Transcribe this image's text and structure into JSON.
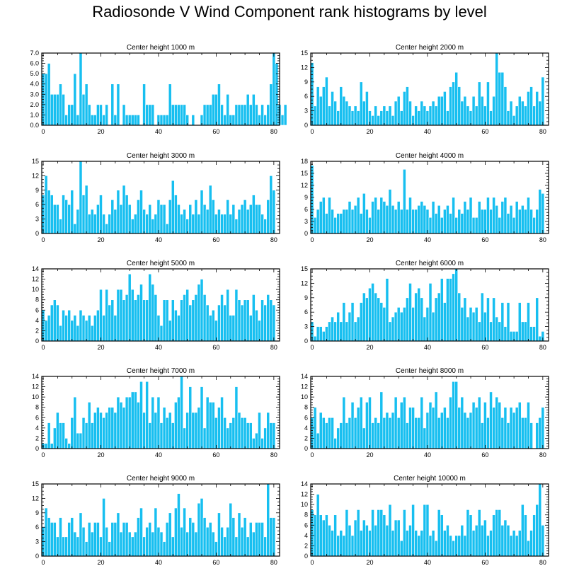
{
  "title": "Radiosonde V Wind Component rank histograms by level",
  "colors": {
    "bar": "#17bff0",
    "bar_edge": "#ffffff",
    "axis": "#000000"
  },
  "chart_data": [
    {
      "type": "bar",
      "title": "Center height 1000 m",
      "x_start": 0,
      "xlim": [
        -0.5,
        82
      ],
      "xticks": [
        0,
        20,
        40,
        60,
        80
      ],
      "ylim": [
        0,
        7
      ],
      "yticks": [
        0,
        1,
        2,
        3,
        4,
        5,
        6,
        7
      ],
      "ytick_labels": [
        "0.0",
        "1.0",
        "2.0",
        "3.0",
        "4.0",
        "5.0",
        "6.0",
        "7.0"
      ],
      "values": [
        5,
        5,
        6,
        3,
        3,
        3,
        4,
        3,
        1,
        2,
        2,
        5,
        1,
        7,
        3,
        4,
        2,
        1,
        1,
        2,
        2,
        1,
        2,
        0,
        4,
        1,
        4,
        0,
        2,
        1,
        1,
        1,
        1,
        1,
        0,
        4,
        2,
        2,
        2,
        0,
        1,
        1,
        1,
        1,
        4,
        2,
        2,
        2,
        2,
        2,
        1,
        0,
        1,
        0,
        0,
        1,
        2,
        2,
        2,
        3,
        3,
        4,
        2,
        1,
        3,
        1,
        1,
        2,
        2,
        2,
        2,
        3,
        2,
        3,
        2,
        1,
        2,
        1,
        2,
        4,
        7,
        6,
        2,
        1,
        2
      ]
    },
    {
      "type": "bar",
      "title": "Center height 2000 m",
      "x_start": 0,
      "xlim": [
        -0.5,
        82
      ],
      "xticks": [
        0,
        20,
        40,
        60,
        80
      ],
      "ylim": [
        0,
        15
      ],
      "yticks": [
        0,
        3,
        6,
        9,
        12,
        15
      ],
      "ytick_labels": [
        "0",
        "3",
        "6",
        "9",
        "12",
        "15"
      ],
      "values": [
        13,
        4,
        8,
        6,
        8,
        10,
        4,
        7,
        5,
        3,
        8,
        6,
        5,
        4,
        3,
        4,
        3,
        9,
        5,
        7,
        3,
        2,
        4,
        2,
        3,
        4,
        3,
        4,
        2,
        5,
        6,
        3,
        7,
        8,
        5,
        2,
        4,
        3,
        5,
        4,
        3,
        4,
        5,
        4,
        6,
        6,
        7,
        3,
        8,
        9,
        11,
        8,
        5,
        6,
        4,
        3,
        6,
        4,
        9,
        6,
        4,
        9,
        3,
        6,
        15,
        11,
        11,
        8,
        3,
        5,
        2,
        4,
        6,
        5,
        4,
        7,
        8,
        4,
        7,
        5,
        10
      ]
    },
    {
      "type": "bar",
      "title": "Center height 3000 m",
      "x_start": 0,
      "xlim": [
        -0.5,
        82
      ],
      "xticks": [
        0,
        20,
        40,
        60,
        80
      ],
      "ylim": [
        0,
        15
      ],
      "yticks": [
        0,
        3,
        6,
        9,
        12,
        15
      ],
      "ytick_labels": [
        "0",
        "3",
        "6",
        "9",
        "12",
        "15"
      ],
      "values": [
        8,
        12,
        9,
        8,
        6,
        6,
        3,
        8,
        7,
        6,
        9,
        2,
        5,
        15,
        8,
        10,
        4,
        5,
        4,
        6,
        8,
        4,
        2,
        4,
        7,
        5,
        9,
        6,
        10,
        8,
        6,
        3,
        4,
        7,
        9,
        5,
        4,
        6,
        3,
        4,
        7,
        6,
        6,
        2,
        7,
        11,
        8,
        6,
        4,
        5,
        3,
        6,
        4,
        7,
        4,
        9,
        6,
        5,
        10,
        7,
        4,
        5,
        4,
        4,
        7,
        4,
        6,
        3,
        5,
        6,
        7,
        5,
        6,
        8,
        6,
        6,
        4,
        3,
        7,
        12,
        9
      ]
    },
    {
      "type": "bar",
      "title": "Center height 4000 m",
      "x_start": 0,
      "xlim": [
        -0.5,
        82
      ],
      "xticks": [
        0,
        20,
        40,
        60,
        80
      ],
      "ylim": [
        0,
        18
      ],
      "yticks": [
        0,
        3,
        6,
        9,
        12,
        15,
        18
      ],
      "ytick_labels": [
        "0",
        "3",
        "6",
        "9",
        "12",
        "15",
        "18"
      ],
      "values": [
        17,
        4,
        6,
        8,
        9,
        5,
        9,
        6,
        4,
        5,
        5,
        6,
        6,
        8,
        6,
        7,
        9,
        5,
        10,
        6,
        4,
        8,
        9,
        6,
        9,
        8,
        7,
        11,
        7,
        6,
        8,
        6,
        16,
        6,
        9,
        6,
        6,
        7,
        8,
        7,
        6,
        4,
        8,
        5,
        7,
        4,
        6,
        7,
        5,
        9,
        4,
        6,
        5,
        8,
        6,
        9,
        4,
        4,
        8,
        6,
        6,
        9,
        6,
        9,
        7,
        4,
        8,
        9,
        5,
        7,
        4,
        8,
        6,
        7,
        6,
        9,
        6,
        4,
        6,
        11,
        10
      ]
    },
    {
      "type": "bar",
      "title": "Center height 5000 m",
      "x_start": 0,
      "xlim": [
        -0.5,
        82
      ],
      "xticks": [
        0,
        20,
        40,
        60,
        80
      ],
      "ylim": [
        0,
        14
      ],
      "yticks": [
        0,
        2,
        4,
        6,
        8,
        10,
        12,
        14
      ],
      "ytick_labels": [
        "0",
        "2",
        "4",
        "6",
        "8",
        "10",
        "12",
        "14"
      ],
      "values": [
        6,
        4,
        5,
        7,
        8,
        7,
        3,
        6,
        5,
        6,
        4,
        5,
        3,
        6,
        5,
        4,
        5,
        3,
        5,
        6,
        10,
        5,
        10,
        7,
        8,
        5,
        10,
        10,
        8,
        9,
        13,
        10,
        8,
        9,
        11,
        8,
        8,
        13,
        11,
        9,
        5,
        3,
        8,
        8,
        4,
        8,
        6,
        5,
        8,
        9,
        10,
        7,
        8,
        9,
        11,
        12,
        9,
        7,
        5,
        6,
        4,
        7,
        9,
        7,
        10,
        5,
        5,
        10,
        8,
        7,
        8,
        8,
        5,
        9,
        6,
        4,
        8,
        7,
        9,
        8,
        7
      ]
    },
    {
      "type": "bar",
      "title": "Center height 6000 m",
      "x_start": 0,
      "xlim": [
        -0.5,
        82
      ],
      "xticks": [
        0,
        20,
        40,
        60,
        80
      ],
      "ylim": [
        0,
        15
      ],
      "yticks": [
        0,
        3,
        6,
        9,
        12,
        15
      ],
      "ytick_labels": [
        "0",
        "3",
        "6",
        "9",
        "12",
        "15"
      ],
      "values": [
        4,
        1,
        3,
        3,
        2,
        3,
        4,
        5,
        4,
        6,
        4,
        8,
        4,
        6,
        8,
        4,
        5,
        8,
        10,
        9,
        11,
        12,
        10,
        9,
        8,
        7,
        13,
        4,
        5,
        6,
        7,
        6,
        7,
        9,
        12,
        7,
        10,
        11,
        9,
        5,
        7,
        12,
        6,
        9,
        10,
        13,
        8,
        13,
        13,
        14,
        15,
        10,
        7,
        9,
        5,
        7,
        6,
        7,
        4,
        10,
        6,
        9,
        4,
        9,
        5,
        4,
        8,
        3,
        8,
        2,
        2,
        2,
        8,
        4,
        4,
        8,
        3,
        3,
        9,
        1,
        2
      ]
    },
    {
      "type": "bar",
      "title": "Center height 7000 m",
      "x_start": 0,
      "xlim": [
        -0.5,
        82
      ],
      "xticks": [
        0,
        20,
        40,
        60,
        80
      ],
      "ylim": [
        0,
        14
      ],
      "yticks": [
        0,
        2,
        4,
        6,
        8,
        10,
        12,
        14
      ],
      "ytick_labels": [
        "0",
        "2",
        "4",
        "6",
        "8",
        "10",
        "12",
        "14"
      ],
      "values": [
        1,
        1,
        5,
        1,
        4,
        7,
        5,
        5,
        2,
        1,
        6,
        10,
        3,
        3,
        6,
        5,
        9,
        5,
        7,
        8,
        7,
        6,
        7,
        8,
        8,
        7,
        10,
        9,
        8,
        10,
        10,
        11,
        11,
        9,
        13,
        7,
        13,
        5,
        10,
        7,
        10,
        5,
        8,
        6,
        7,
        5,
        9,
        10,
        14,
        4,
        7,
        12,
        7,
        7,
        8,
        12,
        4,
        10,
        9,
        9,
        6,
        8,
        10,
        6,
        4,
        5,
        6,
        12,
        7,
        6,
        6,
        5,
        5,
        2,
        3,
        7,
        2,
        4,
        7,
        5,
        5
      ]
    },
    {
      "type": "bar",
      "title": "Center height 8000 m",
      "x_start": 0,
      "xlim": [
        -0.5,
        82
      ],
      "xticks": [
        0,
        20,
        40,
        60,
        80
      ],
      "ylim": [
        0,
        14
      ],
      "yticks": [
        0,
        2,
        4,
        6,
        8,
        10,
        12,
        14
      ],
      "ytick_labels": [
        "0",
        "2",
        "4",
        "6",
        "8",
        "10",
        "12",
        "14"
      ],
      "values": [
        6,
        8,
        3,
        7,
        6,
        5,
        6,
        6,
        2,
        4,
        5,
        10,
        5,
        6,
        9,
        6,
        8,
        10,
        4,
        9,
        10,
        5,
        6,
        5,
        11,
        6,
        7,
        6,
        7,
        10,
        6,
        9,
        10,
        5,
        8,
        8,
        6,
        6,
        10,
        4,
        7,
        9,
        8,
        11,
        6,
        7,
        8,
        6,
        10,
        13,
        13,
        8,
        10,
        7,
        6,
        7,
        9,
        8,
        10,
        5,
        9,
        6,
        11,
        8,
        10,
        9,
        6,
        8,
        5,
        8,
        7,
        8,
        9,
        6,
        6,
        9,
        5,
        0,
        5,
        6,
        8
      ]
    },
    {
      "type": "bar",
      "title": "Center height 9000 m",
      "x_start": 0,
      "xlim": [
        -0.5,
        82
      ],
      "xticks": [
        0,
        20,
        40,
        60,
        80
      ],
      "ylim": [
        0,
        15
      ],
      "yticks": [
        0,
        3,
        6,
        9,
        12,
        15
      ],
      "ytick_labels": [
        "0",
        "3",
        "6",
        "9",
        "12",
        "15"
      ],
      "values": [
        6,
        10,
        8,
        7,
        7,
        4,
        8,
        4,
        4,
        7,
        8,
        5,
        4,
        9,
        6,
        3,
        7,
        5,
        7,
        7,
        4,
        12,
        6,
        3,
        7,
        7,
        9,
        5,
        7,
        7,
        5,
        4,
        5,
        8,
        10,
        4,
        6,
        7,
        5,
        10,
        6,
        5,
        3,
        7,
        9,
        4,
        10,
        13,
        6,
        10,
        5,
        8,
        7,
        5,
        11,
        12,
        8,
        6,
        7,
        5,
        3,
        9,
        6,
        4,
        6,
        11,
        8,
        4,
        9,
        6,
        8,
        4,
        7,
        5,
        7,
        7,
        7,
        4,
        15,
        8,
        8
      ]
    },
    {
      "type": "bar",
      "title": "Center height 10000 m",
      "x_start": 0,
      "xlim": [
        -0.5,
        82
      ],
      "xticks": [
        0,
        20,
        40,
        60,
        80
      ],
      "ylim": [
        0,
        14
      ],
      "yticks": [
        0,
        2,
        4,
        6,
        8,
        10,
        12,
        14
      ],
      "ytick_labels": [
        "0",
        "2",
        "4",
        "6",
        "8",
        "10",
        "12",
        "14"
      ],
      "values": [
        9,
        8,
        12,
        8,
        7,
        8,
        6,
        5,
        8,
        4,
        5,
        4,
        9,
        6,
        4,
        7,
        9,
        5,
        7,
        6,
        5,
        9,
        6,
        9,
        9,
        8,
        6,
        10,
        5,
        7,
        7,
        3,
        9,
        5,
        6,
        10,
        5,
        4,
        5,
        10,
        10,
        4,
        5,
        3,
        9,
        8,
        5,
        6,
        4,
        3,
        4,
        4,
        6,
        4,
        9,
        8,
        5,
        6,
        9,
        6,
        7,
        4,
        5,
        8,
        9,
        9,
        6,
        7,
        6,
        4,
        5,
        4,
        5,
        10,
        8,
        3,
        5,
        8,
        10,
        14,
        6
      ]
    }
  ]
}
